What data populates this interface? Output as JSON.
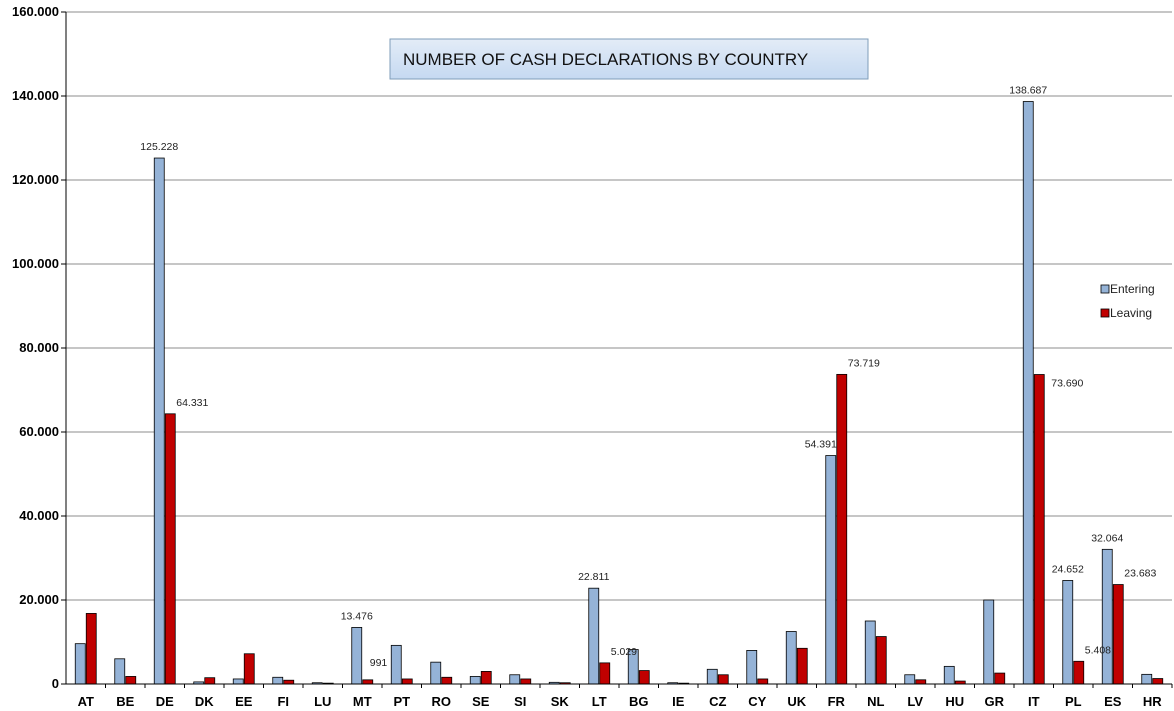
{
  "chart_data": {
    "type": "bar",
    "title": "NUMBER OF CASH DECLARATIONS BY COUNTRY",
    "xlabel": "",
    "ylabel": "",
    "ylim": [
      0,
      160000
    ],
    "yticks": [
      0,
      20000,
      40000,
      60000,
      80000,
      100000,
      120000,
      140000,
      160000
    ],
    "ytick_labels": [
      "0",
      "20.000",
      "40.000",
      "60.000",
      "80.000",
      "100.000",
      "120.000",
      "140.000",
      "160.000"
    ],
    "grid": true,
    "legend_position": "right",
    "categories": [
      "AT",
      "BE",
      "DE",
      "DK",
      "EE",
      "FI",
      "LU",
      "MT",
      "PT",
      "RO",
      "SE",
      "SI",
      "SK",
      "LT",
      "BG",
      "IE",
      "CZ",
      "CY",
      "UK",
      "FR",
      "NL",
      "LV",
      "HU",
      "GR",
      "IT",
      "PL",
      "ES",
      "HR"
    ],
    "series": [
      {
        "name": "Entering",
        "color": "#95b3d7",
        "values": [
          9600,
          6000,
          125228,
          500,
          1200,
          1600,
          300,
          13476,
          9200,
          5200,
          1800,
          2200,
          400,
          22811,
          8200,
          300,
          3500,
          8000,
          12500,
          54391,
          15000,
          2200,
          4200,
          20000,
          138687,
          24652,
          32064,
          2300
        ]
      },
      {
        "name": "Leaving",
        "color": "#c00000",
        "values": [
          16800,
          1800,
          64331,
          1500,
          7200,
          900,
          200,
          991,
          1200,
          1600,
          3000,
          1200,
          300,
          5029,
          3200,
          200,
          2200,
          1200,
          8500,
          73719,
          11300,
          1000,
          700,
          2600,
          73690,
          5408,
          23683,
          1300
        ]
      }
    ],
    "data_labels": [
      {
        "series": 0,
        "index": 2,
        "text": "125.228"
      },
      {
        "series": 1,
        "index": 2,
        "text": "64.331"
      },
      {
        "series": 0,
        "index": 7,
        "text": "13.476"
      },
      {
        "series": 1,
        "index": 7,
        "text": "991"
      },
      {
        "series": 0,
        "index": 13,
        "text": "22.811"
      },
      {
        "series": 1,
        "index": 13,
        "text": "5.029"
      },
      {
        "series": 0,
        "index": 19,
        "text": "54.391"
      },
      {
        "series": 1,
        "index": 19,
        "text": "73.719"
      },
      {
        "series": 0,
        "index": 24,
        "text": "138.687"
      },
      {
        "series": 1,
        "index": 24,
        "text": "73.690"
      },
      {
        "series": 0,
        "index": 25,
        "text": "24.652"
      },
      {
        "series": 1,
        "index": 25,
        "text": "5.408"
      },
      {
        "series": 0,
        "index": 26,
        "text": "32.064"
      },
      {
        "series": 1,
        "index": 26,
        "text": "23.683"
      }
    ]
  }
}
